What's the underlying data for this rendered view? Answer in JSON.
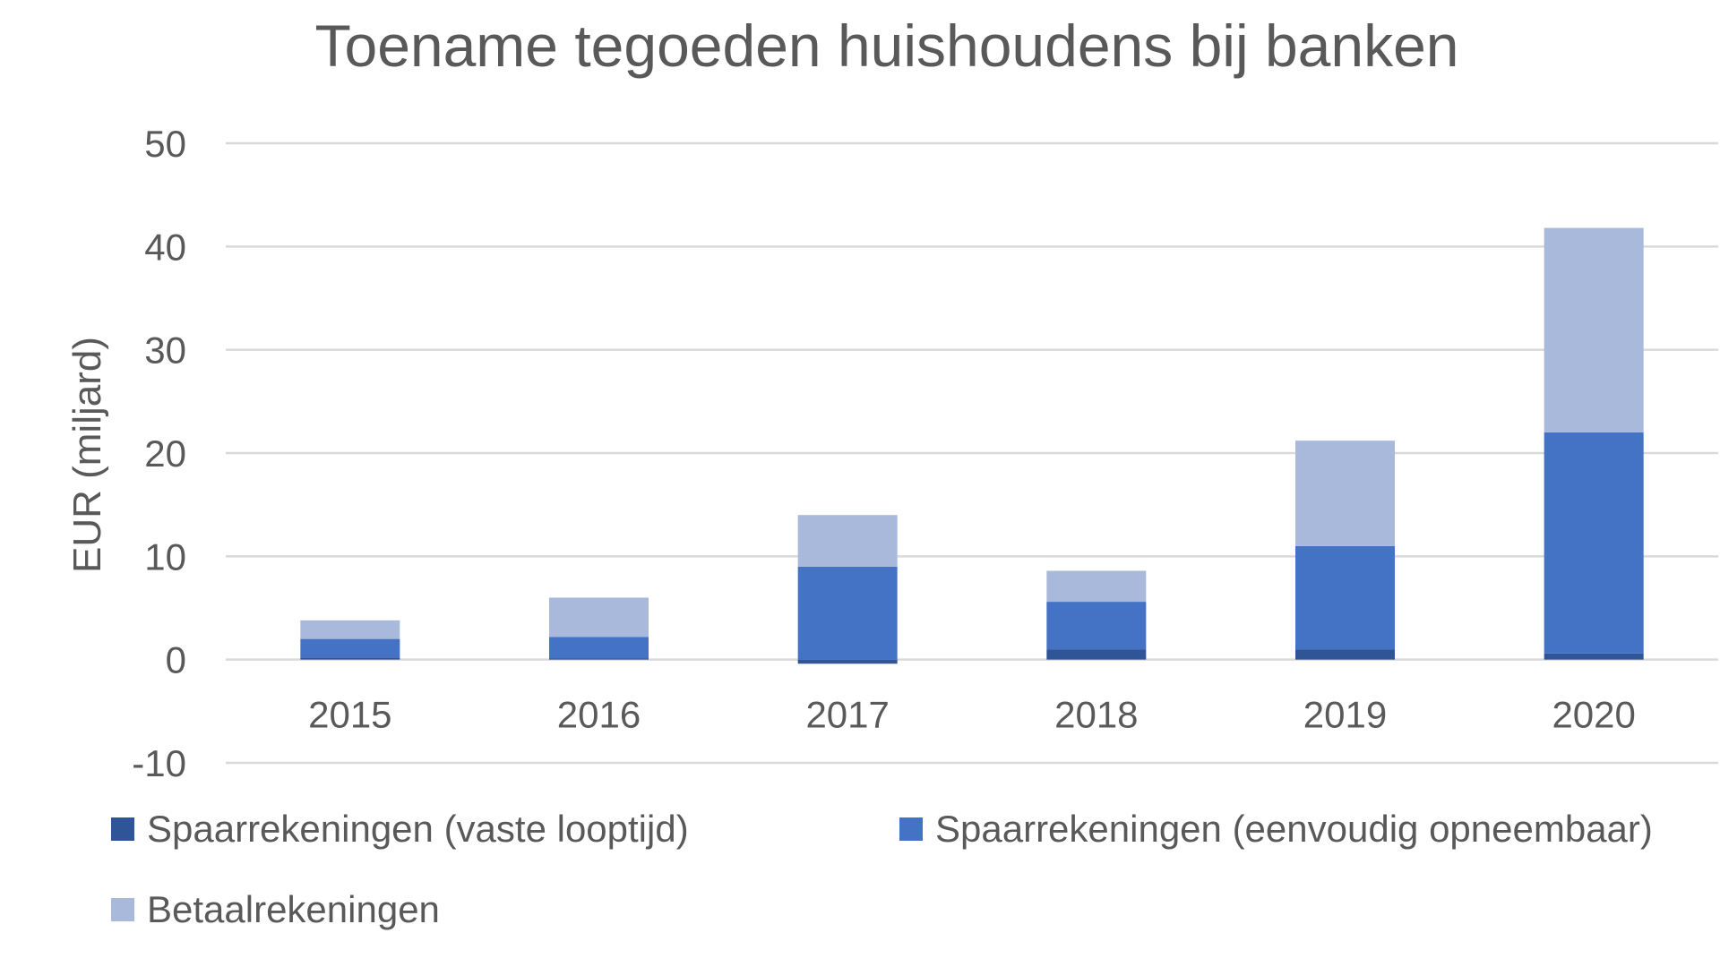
{
  "chart_data": {
    "type": "bar",
    "stacked": true,
    "title": "Toename tegoeden huishoudens bij banken",
    "xlabel": "",
    "ylabel": "EUR (miljard)",
    "categories": [
      "2015",
      "2016",
      "2017",
      "2018",
      "2019",
      "2020"
    ],
    "ylim": [
      -10,
      50
    ],
    "yticks": [
      "-10",
      "0",
      "10",
      "20",
      "30",
      "40",
      "50"
    ],
    "grid": true,
    "legend_position": "bottom",
    "series": [
      {
        "name": "Spaarrekeningen (vaste looptijd)",
        "color": "#2f5597",
        "values": [
          0.2,
          0.1,
          -0.4,
          1.0,
          1.0,
          0.6
        ]
      },
      {
        "name": "Spaarrekeningen (eenvoudig opneembaar)",
        "color": "#4472c4",
        "values": [
          1.8,
          2.1,
          9.0,
          4.6,
          10.0,
          21.4
        ]
      },
      {
        "name": "Betaalrekeningen",
        "color": "#a9b9dc",
        "values": [
          1.8,
          3.8,
          5.0,
          3.0,
          10.2,
          19.8
        ]
      }
    ]
  }
}
